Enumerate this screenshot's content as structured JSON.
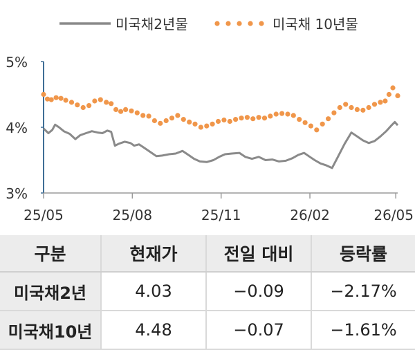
{
  "chart_data": {
    "type": "line",
    "legend": {
      "placement": "top-center"
    },
    "series": [
      {
        "name": "미국채2년물",
        "color": "#8a8a8a",
        "style": "solid",
        "x": [
          "25/05/01",
          "25/05/06",
          "25/05/10",
          "25/05/13",
          "25/05/17",
          "25/05/22",
          "25/05/28",
          "25/06/03",
          "25/06/08",
          "25/06/14",
          "25/06/20",
          "25/06/26",
          "25/07/01",
          "25/07/06",
          "25/07/10",
          "25/07/14",
          "25/07/18",
          "25/07/24",
          "25/07/30",
          "25/08/03",
          "25/08/08",
          "25/08/14",
          "25/08/20",
          "25/08/26",
          "25/09/01",
          "25/09/08",
          "25/09/15",
          "25/09/22",
          "25/09/28",
          "25/10/04",
          "25/10/10",
          "25/10/17",
          "25/10/24",
          "25/10/30",
          "25/11/05",
          "25/11/12",
          "25/11/20",
          "25/11/26",
          "25/12/03",
          "25/12/10",
          "25/12/17",
          "25/12/24",
          "25/12/31",
          "26/01/07",
          "26/01/14",
          "26/01/20",
          "26/01/26",
          "26/02/01",
          "26/02/06",
          "26/02/12",
          "26/02/18",
          "26/02/24",
          "26/03/02",
          "26/03/09",
          "26/03/16",
          "26/03/22",
          "26/03/28",
          "26/04/03",
          "26/04/09",
          "26/04/15",
          "26/04/21",
          "26/04/26",
          "26/04/30",
          "26/05/03"
        ],
        "y": [
          3.98,
          3.91,
          3.96,
          4.04,
          4.0,
          3.94,
          3.9,
          3.82,
          3.88,
          3.91,
          3.94,
          3.92,
          3.91,
          3.95,
          3.93,
          3.72,
          3.75,
          3.78,
          3.76,
          3.72,
          3.74,
          3.68,
          3.62,
          3.56,
          3.57,
          3.59,
          3.6,
          3.64,
          3.58,
          3.52,
          3.48,
          3.47,
          3.5,
          3.55,
          3.59,
          3.6,
          3.61,
          3.55,
          3.52,
          3.55,
          3.5,
          3.51,
          3.48,
          3.49,
          3.53,
          3.58,
          3.61,
          3.55,
          3.5,
          3.45,
          3.42,
          3.38,
          3.55,
          3.75,
          3.92,
          3.86,
          3.8,
          3.76,
          3.79,
          3.86,
          3.94,
          4.02,
          4.08,
          4.03
        ]
      },
      {
        "name": "미국채 10년물",
        "color": "#f0964a",
        "style": "dotted",
        "x": [
          "25/05/01",
          "25/05/05",
          "25/05/09",
          "25/05/14",
          "25/05/19",
          "25/05/24",
          "25/05/30",
          "25/06/05",
          "25/06/11",
          "25/06/17",
          "25/06/23",
          "25/06/29",
          "25/07/05",
          "25/07/10",
          "25/07/15",
          "25/07/20",
          "25/07/25",
          "25/07/31",
          "25/08/06",
          "25/08/12",
          "25/08/18",
          "25/08/24",
          "25/08/30",
          "25/09/05",
          "25/09/11",
          "25/09/17",
          "25/09/23",
          "25/09/29",
          "25/10/05",
          "25/10/11",
          "25/10/17",
          "25/10/23",
          "25/10/29",
          "25/11/04",
          "25/11/10",
          "25/11/16",
          "25/11/22",
          "25/11/28",
          "25/12/04",
          "25/12/10",
          "25/12/16",
          "25/12/22",
          "25/12/28",
          "26/01/03",
          "26/01/09",
          "26/01/15",
          "26/01/21",
          "26/01/27",
          "26/02/02",
          "26/02/08",
          "26/02/14",
          "26/02/20",
          "26/02/26",
          "26/03/04",
          "26/03/10",
          "26/03/16",
          "26/03/22",
          "26/03/28",
          "26/04/03",
          "26/04/09",
          "26/04/15",
          "26/04/20",
          "26/04/24",
          "26/04/28",
          "26/05/03"
        ],
        "y": [
          4.5,
          4.43,
          4.42,
          4.45,
          4.44,
          4.41,
          4.38,
          4.34,
          4.3,
          4.33,
          4.4,
          4.42,
          4.38,
          4.36,
          4.27,
          4.24,
          4.27,
          4.25,
          4.22,
          4.18,
          4.17,
          4.1,
          4.06,
          4.1,
          4.14,
          4.18,
          4.12,
          4.08,
          4.05,
          4.0,
          4.02,
          4.05,
          4.09,
          4.11,
          4.09,
          4.12,
          4.14,
          4.15,
          4.13,
          4.15,
          4.14,
          4.17,
          4.2,
          4.21,
          4.2,
          4.18,
          4.12,
          4.07,
          4.02,
          3.96,
          4.05,
          4.13,
          4.22,
          4.3,
          4.35,
          4.3,
          4.27,
          4.26,
          4.3,
          4.35,
          4.38,
          4.4,
          4.5,
          4.6,
          4.48
        ]
      }
    ],
    "y_axis": {
      "min": 3,
      "max": 5,
      "ticks": [
        "5%",
        "4%",
        "3%"
      ],
      "tick_values": [
        5,
        4,
        3
      ]
    },
    "x_axis": {
      "min": "25/05/01",
      "max": "26/05/03",
      "ticks": [
        "25/05",
        "25/08",
        "25/11",
        "26/02",
        "26/05"
      ],
      "tick_dates": [
        "25/05/01",
        "25/08/01",
        "25/11/01",
        "26/02/01",
        "26/05/01"
      ]
    },
    "grid": false
  },
  "table": {
    "headers": [
      "구분",
      "현재가",
      "전일 대비",
      "등락률"
    ],
    "rows": [
      {
        "name": "미국채2년",
        "price": "4.03",
        "change": "−0.09",
        "rate": "−2.17%"
      },
      {
        "name": "미국채10년",
        "price": "4.48",
        "change": "−0.07",
        "rate": "−1.61%"
      }
    ]
  }
}
